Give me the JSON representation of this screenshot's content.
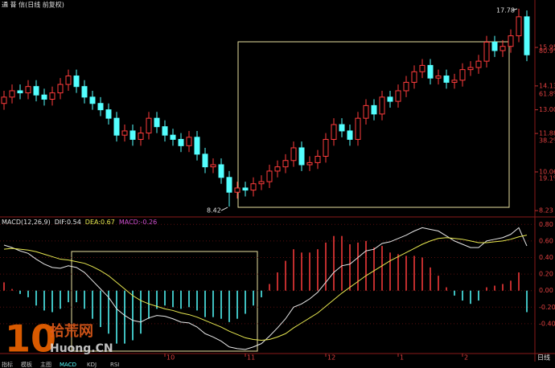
{
  "chart_data": {
    "type": "candlestick",
    "title": "通 普 信(日线 前复权)",
    "categories": [
      null,
      null,
      null,
      null,
      null,
      null,
      null,
      null,
      null,
      null,
      null,
      null,
      null,
      null,
      null,
      null,
      null,
      null,
      null,
      null,
      "10",
      null,
      null,
      null,
      null,
      null,
      null,
      null,
      null,
      null,
      "11",
      null,
      null,
      null,
      null,
      null,
      null,
      null,
      null,
      null,
      "12",
      null,
      null,
      null,
      null,
      null,
      null,
      null,
      null,
      "1",
      null,
      null,
      null,
      null,
      null,
      null,
      null,
      "2",
      null,
      null,
      null,
      null,
      null,
      null,
      null,
      null
    ],
    "candles": {
      "open": [
        13.3,
        13.6,
        13.9,
        13.8,
        14.1,
        13.7,
        13.5,
        13.8,
        14.2,
        14.6,
        14.1,
        13.6,
        13.3,
        13.0,
        12.6,
        11.8,
        12.0,
        11.6,
        11.9,
        12.6,
        12.2,
        11.8,
        11.6,
        11.3,
        11.7,
        10.9,
        10.3,
        10.4,
        9.8,
        9.1,
        9.3,
        9.2,
        9.5,
        9.6,
        10.1,
        10.3,
        10.6,
        11.2,
        10.4,
        10.5,
        10.8,
        11.6,
        12.3,
        12.0,
        11.6,
        12.6,
        13.2,
        12.8,
        13.6,
        13.4,
        13.9,
        14.3,
        14.8,
        15.1,
        14.5,
        14.6,
        14.3,
        14.4,
        14.9,
        15.0,
        15.3,
        16.2,
        15.8,
        16.0,
        16.5,
        17.4
      ],
      "high": [
        13.9,
        14.2,
        14.2,
        14.4,
        14.4,
        14.0,
        14.1,
        14.5,
        14.9,
        14.9,
        14.4,
        13.9,
        13.6,
        13.3,
        12.9,
        12.3,
        12.3,
        12.2,
        12.9,
        12.9,
        12.5,
        12.1,
        11.9,
        12.0,
        12.0,
        11.2,
        10.7,
        10.7,
        10.1,
        9.6,
        9.6,
        9.8,
        9.9,
        10.4,
        10.6,
        10.9,
        11.5,
        11.5,
        10.8,
        11.1,
        11.9,
        12.6,
        12.6,
        12.3,
        12.9,
        13.5,
        13.5,
        13.9,
        13.9,
        14.2,
        14.6,
        15.1,
        15.4,
        15.4,
        14.9,
        14.9,
        14.7,
        15.2,
        15.3,
        15.6,
        16.5,
        16.5,
        16.3,
        16.8,
        17.78,
        17.7
      ],
      "low": [
        13.0,
        13.3,
        13.5,
        13.5,
        13.4,
        13.2,
        13.2,
        13.5,
        13.9,
        13.8,
        13.3,
        13.0,
        12.7,
        12.3,
        11.5,
        11.5,
        11.3,
        11.3,
        11.6,
        11.9,
        11.5,
        11.3,
        11.0,
        11.0,
        10.6,
        10.0,
        10.0,
        9.5,
        8.42,
        8.8,
        8.9,
        8.9,
        9.2,
        9.3,
        9.8,
        10.0,
        10.3,
        10.1,
        10.1,
        10.2,
        10.5,
        11.3,
        11.7,
        11.3,
        11.3,
        12.3,
        12.5,
        12.5,
        13.1,
        13.1,
        13.6,
        14.0,
        14.5,
        14.2,
        14.2,
        14.0,
        14.0,
        14.1,
        14.6,
        14.7,
        15.0,
        15.5,
        15.5,
        15.7,
        16.2,
        15.3
      ],
      "close": [
        13.6,
        13.9,
        13.8,
        14.1,
        13.7,
        13.5,
        13.8,
        14.2,
        14.6,
        14.1,
        13.6,
        13.3,
        13.0,
        12.6,
        11.8,
        12.0,
        11.6,
        11.9,
        12.6,
        12.2,
        11.8,
        11.6,
        11.3,
        11.7,
        10.9,
        10.3,
        10.4,
        9.8,
        9.1,
        9.3,
        9.2,
        9.5,
        9.6,
        10.1,
        10.3,
        10.6,
        11.2,
        10.4,
        10.5,
        10.8,
        11.6,
        12.3,
        12.0,
        11.6,
        12.6,
        13.2,
        12.8,
        13.6,
        13.4,
        13.9,
        14.3,
        14.8,
        15.1,
        14.5,
        14.6,
        14.3,
        14.4,
        14.9,
        15.0,
        15.3,
        16.2,
        15.8,
        16.0,
        16.5,
        17.4,
        15.6
      ]
    },
    "up_color": "#ff3c3c",
    "down_color": "#54ffff",
    "ylim": [
      7.93,
      17.89
    ],
    "yticks": [
      8.23,
      10.06,
      11.88,
      {
        "value": 13,
        "label": "13.00"
      },
      14.13,
      15.95
    ],
    "fib_labels": [
      {
        "value": 9.75,
        "label": "19.1%"
      },
      {
        "value": 11.54,
        "label": "38.2%"
      },
      {
        "value": 13.74,
        "label": "61.8%"
      },
      {
        "value": 15.78,
        "label": "80.9%"
      }
    ],
    "period_label": "日线",
    "macd": {
      "title": "MACD(12,26,9)",
      "ylim": [
        -0.76,
        0.89
      ],
      "yticks": [
        {
          "value": -0.4,
          "label": "-0.40"
        },
        {
          "value": -0.2,
          "label": "-0.20"
        },
        {
          "value": 0,
          "label": "0.00"
        },
        {
          "value": 0.2,
          "label": "0.20"
        },
        {
          "value": 0.4,
          "label": "0.40"
        },
        {
          "value": 0.6,
          "label": "0.60"
        },
        {
          "value": 0.8,
          "label": "0.80"
        }
      ],
      "series": [
        {
          "name": "DIF:",
          "color": "#e8e8e8",
          "values": [
            0.55,
            0.52,
            0.48,
            0.45,
            0.38,
            0.32,
            0.28,
            0.27,
            0.3,
            0.28,
            0.22,
            0.12,
            0.02,
            -0.08,
            -0.22,
            -0.3,
            -0.36,
            -0.38,
            -0.33,
            -0.3,
            -0.31,
            -0.34,
            -0.38,
            -0.39,
            -0.44,
            -0.52,
            -0.56,
            -0.61,
            -0.68,
            -0.7,
            -0.71,
            -0.68,
            -0.64,
            -0.55,
            -0.45,
            -0.34,
            -0.2,
            -0.16,
            -0.1,
            -0.02,
            0.1,
            0.22,
            0.3,
            0.32,
            0.4,
            0.48,
            0.5,
            0.57,
            0.59,
            0.63,
            0.67,
            0.72,
            0.76,
            0.74,
            0.72,
            0.66,
            0.6,
            0.56,
            0.52,
            0.52,
            0.6,
            0.62,
            0.64,
            0.68,
            0.76,
            0.54
          ]
        },
        {
          "name": "DEA:",
          "color": "#e8e850",
          "values": [
            0.5,
            0.51,
            0.5,
            0.49,
            0.47,
            0.44,
            0.41,
            0.38,
            0.37,
            0.35,
            0.33,
            0.29,
            0.24,
            0.18,
            0.1,
            0.02,
            -0.06,
            -0.12,
            -0.16,
            -0.19,
            -0.22,
            -0.24,
            -0.27,
            -0.29,
            -0.32,
            -0.36,
            -0.4,
            -0.44,
            -0.49,
            -0.53,
            -0.57,
            -0.59,
            -0.6,
            -0.59,
            -0.56,
            -0.52,
            -0.45,
            -0.39,
            -0.33,
            -0.27,
            -0.19,
            -0.11,
            -0.03,
            0.04,
            0.11,
            0.18,
            0.24,
            0.3,
            0.36,
            0.41,
            0.46,
            0.51,
            0.56,
            0.6,
            0.63,
            0.64,
            0.63,
            0.62,
            0.6,
            0.58,
            0.58,
            0.59,
            0.6,
            0.62,
            0.65,
            0.67
          ]
        },
        {
          "name": "MACD:",
          "color": "#d050d0",
          "pos_color": "#ff3c3c",
          "neg_color": "#54ffff",
          "values": [
            0.1,
            0.02,
            -0.04,
            -0.08,
            -0.18,
            -0.24,
            -0.26,
            -0.22,
            -0.14,
            -0.14,
            -0.22,
            -0.34,
            -0.44,
            -0.52,
            -0.64,
            -0.64,
            -0.6,
            -0.52,
            -0.34,
            -0.22,
            -0.18,
            -0.2,
            -0.22,
            -0.2,
            -0.24,
            -0.32,
            -0.32,
            -0.34,
            -0.38,
            -0.34,
            -0.28,
            -0.18,
            -0.08,
            0.08,
            0.22,
            0.36,
            0.5,
            0.46,
            0.46,
            0.5,
            0.58,
            0.66,
            0.66,
            0.56,
            0.58,
            0.6,
            0.52,
            0.54,
            0.46,
            0.44,
            0.42,
            0.42,
            0.4,
            0.28,
            0.18,
            0.04,
            -0.06,
            -0.12,
            -0.16,
            -0.12,
            0.04,
            0.06,
            0.08,
            0.12,
            0.22,
            -0.26
          ]
        }
      ]
    },
    "watermark": {
      "number": "10",
      "site": "拾荒网",
      "url": "Huong.CN"
    },
    "toolbar": [
      "指标",
      "模板",
      "主图",
      "MACD",
      "KDJ",
      "RSI"
    ]
  }
}
